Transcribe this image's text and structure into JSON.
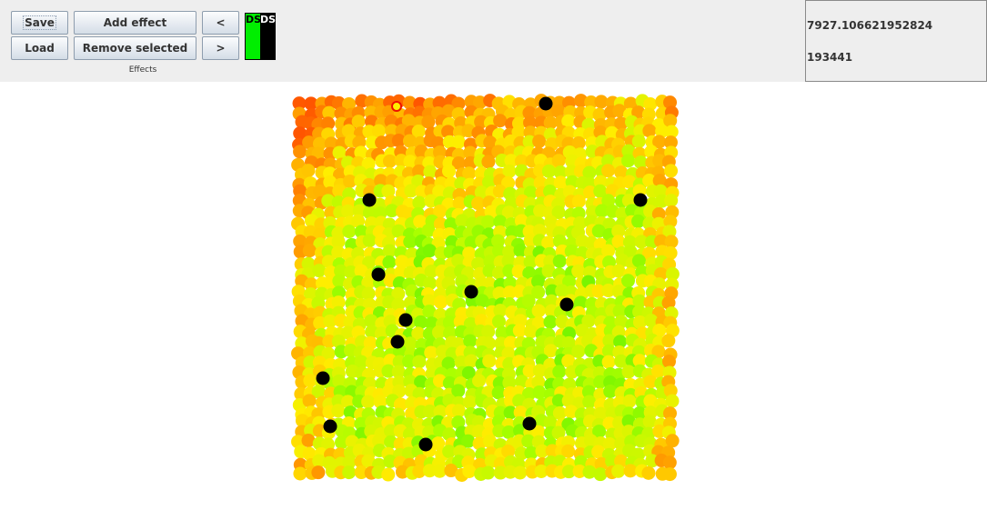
{
  "toolbar": {
    "save_label": "Save",
    "load_label": "Load",
    "add_effect_label": "Add effect",
    "remove_selected_label": "Remove selected",
    "prev_label": "<",
    "next_label": ">",
    "effects_caption": "Effects"
  },
  "ds_indicator": {
    "left_label": "DS",
    "right_label": "DS",
    "left_color": "#00ee00",
    "right_color": "#000000"
  },
  "stats": {
    "value_1": "7927.106621952824",
    "value_2": "193441"
  },
  "map": {
    "colors": {
      "hot": "#ff5500",
      "warm": "#ff9900",
      "mid": "#ffee00",
      "cool": "#aaff00",
      "cold": "#00dd00",
      "marker": "#000000"
    }
  }
}
